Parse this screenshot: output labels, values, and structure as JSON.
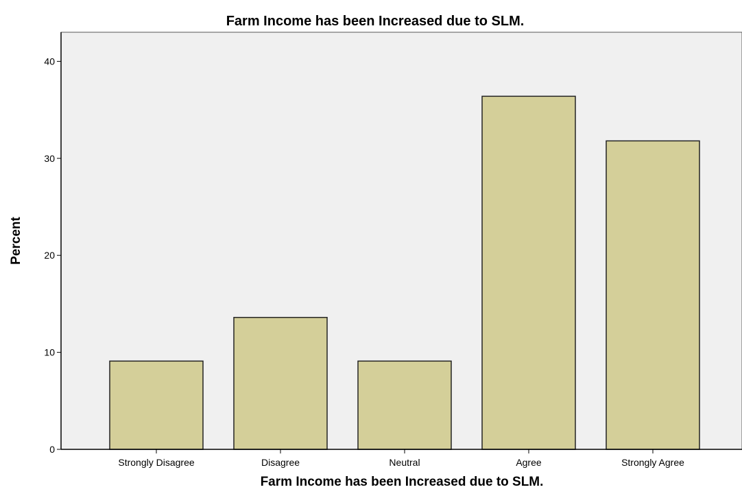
{
  "chart_data": {
    "type": "bar",
    "title": "Farm Income has been Increased due to SLM.",
    "xlabel": "Farm Income has been Increased due to SLM.",
    "ylabel": "Percent",
    "categories": [
      "Strongly Disagree",
      "Disagree",
      "Neutral",
      "Agree",
      "Strongly Agree"
    ],
    "values": [
      9.1,
      13.6,
      9.1,
      36.4,
      31.8
    ],
    "ylim": [
      0,
      43
    ],
    "yticks": [
      0,
      10,
      20,
      30,
      40
    ],
    "grid": false,
    "legend": "none"
  },
  "colors": {
    "plot_background": "#f0f0f0",
    "bar_fill": "#d4cf99",
    "bar_stroke": "#222222",
    "axis": "#000000"
  }
}
